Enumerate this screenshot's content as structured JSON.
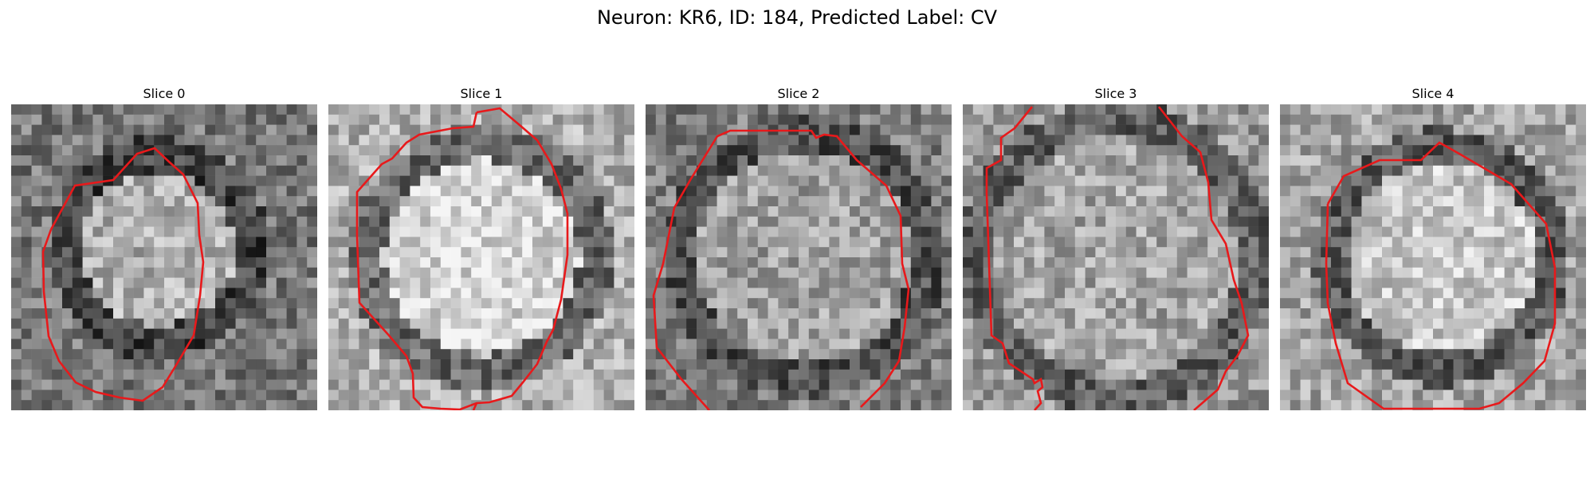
{
  "figure": {
    "title": "Neuron: KR6, ID: 184, Predicted Label: CV"
  },
  "panels": [
    {
      "title": "Slice 0",
      "seed": 11,
      "contour_color": "#e8191b"
    },
    {
      "title": "Slice 1",
      "seed": 23,
      "contour_color": "#e8191b"
    },
    {
      "title": "Slice 2",
      "seed": 37,
      "contour_color": "#e8191b"
    },
    {
      "title": "Slice 3",
      "seed": 41,
      "contour_color": "#e8191b"
    },
    {
      "title": "Slice 4",
      "seed": 59,
      "contour_color": "#e8191b"
    }
  ],
  "image_icon": "grayscale-microscopy-patch"
}
